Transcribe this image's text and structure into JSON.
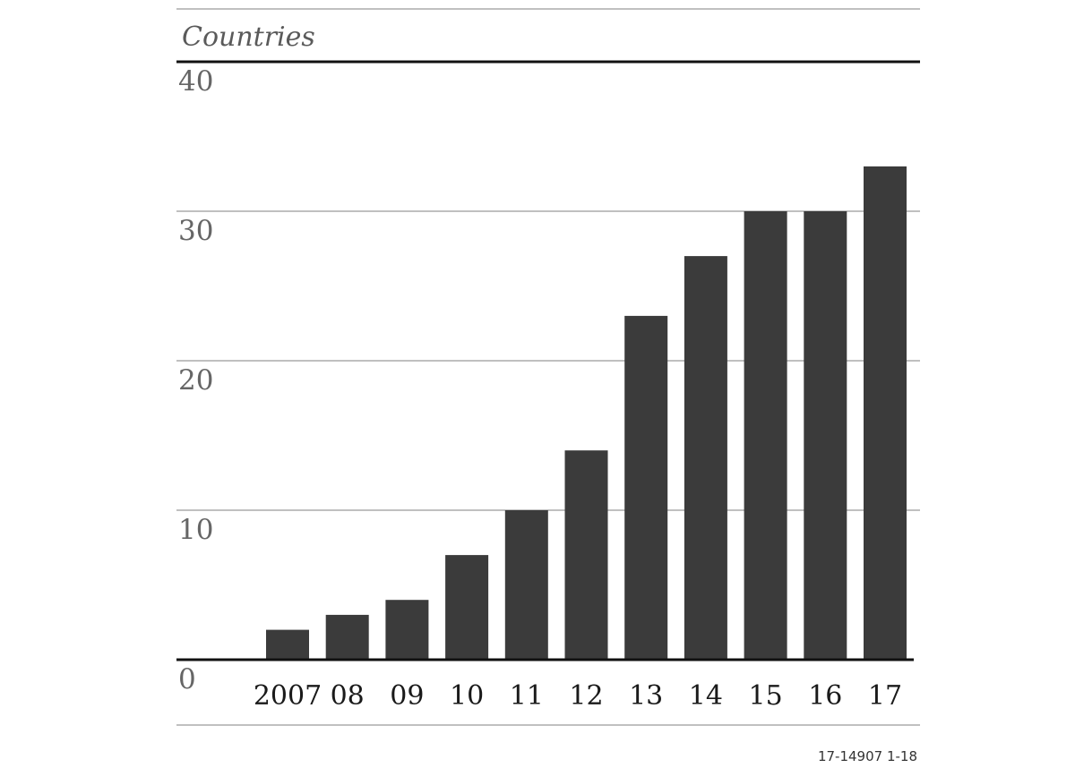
{
  "chart_data": {
    "type": "bar",
    "unit_label": "Countries",
    "categories": [
      "2007",
      "08",
      "09",
      "10",
      "11",
      "12",
      "13",
      "14",
      "15",
      "16",
      "17"
    ],
    "values": [
      2,
      3,
      4,
      7,
      10,
      14,
      23,
      27,
      30,
      30,
      33
    ],
    "ylim": [
      0,
      40
    ],
    "yticks": [
      "0",
      "10",
      "20",
      "30",
      "40"
    ],
    "grid": true,
    "bar_color": "#3b3b3b",
    "source_note": "17-14907 1-18"
  }
}
